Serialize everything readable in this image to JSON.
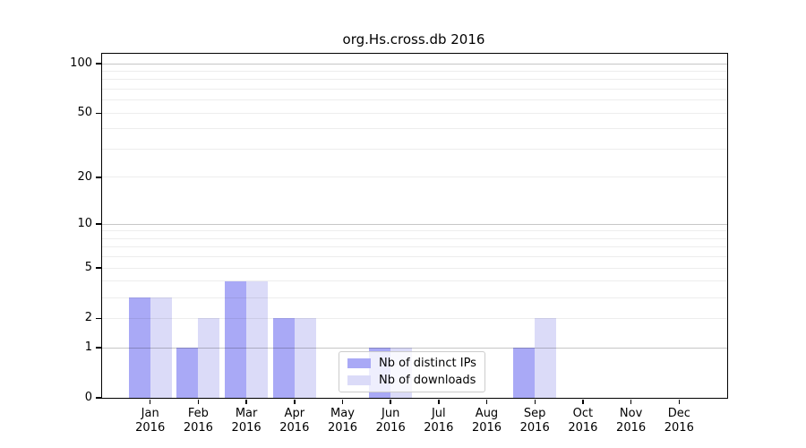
{
  "title": "org.Hs.cross.db 2016",
  "legend": {
    "items": [
      {
        "label": "Nb of distinct IPs",
        "color": "#a9a9f6"
      },
      {
        "label": "Nb of downloads",
        "color": "#dbdbf8"
      }
    ]
  },
  "chart_data": {
    "type": "bar",
    "title": "org.Hs.cross.db 2016",
    "categories": [
      "Jan",
      "Feb",
      "Mar",
      "Apr",
      "May",
      "Jun",
      "Jul",
      "Aug",
      "Sep",
      "Oct",
      "Nov",
      "Dec"
    ],
    "year_label": "2016",
    "series": [
      {
        "name": "Nb of distinct IPs",
        "color": "#a9a9f6",
        "values": [
          3,
          1,
          4,
          2,
          0,
          1,
          0,
          0,
          1,
          0,
          0,
          0
        ]
      },
      {
        "name": "Nb of downloads",
        "color": "#dbdbf8",
        "values": [
          3,
          2,
          4,
          2,
          0,
          1,
          0,
          0,
          2,
          0,
          0,
          0
        ]
      }
    ],
    "yscale": "log1p",
    "ylim": [
      0,
      115
    ],
    "yticks": [
      0,
      1,
      2,
      5,
      10,
      20,
      50,
      100
    ],
    "gridlines": [
      1,
      2,
      3,
      4,
      5,
      6,
      7,
      8,
      9,
      10,
      20,
      30,
      40,
      50,
      60,
      70,
      80,
      90,
      100
    ],
    "major_gridlines": [
      1,
      10,
      100
    ],
    "grid": true,
    "legend_position": "lower-center",
    "axis_color": "#000000",
    "grid_minor_color": "rgba(0,0,0,0.07)",
    "grid_major_color": "rgba(0,0,0,0.22)",
    "background_color": "#ffffff"
  }
}
